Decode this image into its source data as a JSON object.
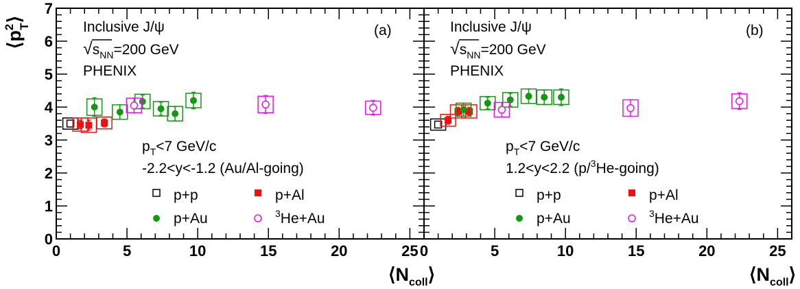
{
  "figure": {
    "ylabel_main": "⟨p",
    "ylabel_sup": "2",
    "ylabel_sub": "T",
    "ylabel_close": "⟩",
    "xlabel_main": "⟨N",
    "xlabel_sub": "coll",
    "xlabel_close": "⟩"
  },
  "panels": [
    {
      "tag": "(a)",
      "title": "Inclusive J/ψ",
      "energy_sqrt": "√",
      "energy_s": "s",
      "energy_sub": "NN",
      "energy_value": "=200 GeV",
      "experiment": "PHENIX",
      "cut_pt_p": "p",
      "cut_pt_sub": "T",
      "cut_pt_rest": "<7 GeV/c",
      "cut_y": "-2.2<y<-1.2 (Au/Al-going)",
      "legend": {
        "pp": "p+p",
        "pal": "p+Al",
        "pau": "p+Au",
        "he_sup": "3",
        "he_rest": "He+Au"
      }
    },
    {
      "tag": "(b)",
      "title": "Inclusive J/ψ",
      "energy_sqrt": "√",
      "energy_s": "s",
      "energy_sub": "NN",
      "energy_value": "=200 GeV",
      "experiment": "PHENIX",
      "cut_pt_p": "p",
      "cut_pt_sub": "T",
      "cut_pt_rest": "<7 GeV/c",
      "cut_y_pre": "1.2<y<2.2 (p/",
      "cut_y_sup": "3",
      "cut_y_post": "He-going)",
      "legend": {
        "pp": "p+p",
        "pal": "p+Al",
        "pau": "p+Au",
        "he_sup": "3",
        "he_rest": "He+Au"
      }
    }
  ],
  "colors": {
    "pp": "#000000",
    "pal": "#ee1111",
    "pau": "#119911",
    "heau": "#ee11ee"
  },
  "chart_data": [
    {
      "type": "scatter",
      "panel": "(a)",
      "xlim": [
        0,
        26
      ],
      "ylim": [
        0,
        7
      ],
      "xticks": [
        "0",
        "5",
        "10",
        "15",
        "20",
        "25"
      ],
      "yticks": [
        "0",
        "1",
        "2",
        "3",
        "4",
        "5",
        "6",
        "7"
      ],
      "series": [
        {
          "name": "p+p",
          "marker": "open-square",
          "color": "#000000",
          "points": [
            {
              "x": 1.0,
              "y": 3.5,
              "stat": 0,
              "sys": 0.17
            }
          ]
        },
        {
          "name": "p+Al",
          "marker": "filled-square",
          "color": "#ee1111",
          "points": [
            {
              "x": 1.7,
              "y": 3.47,
              "stat": 0.13,
              "sys": 0.2
            },
            {
              "x": 2.3,
              "y": 3.45,
              "stat": 0.15,
              "sys": 0.22
            },
            {
              "x": 3.4,
              "y": 3.52,
              "stat": 0.12,
              "sys": 0.18
            }
          ]
        },
        {
          "name": "p+Au",
          "marker": "filled-circle",
          "color": "#119911",
          "points": [
            {
              "x": 2.7,
              "y": 4.0,
              "stat": 0.28,
              "sys": 0.25
            },
            {
              "x": 4.5,
              "y": 3.85,
              "stat": 0.22,
              "sys": 0.22
            },
            {
              "x": 6.1,
              "y": 4.17,
              "stat": 0.2,
              "sys": 0.22
            },
            {
              "x": 7.4,
              "y": 3.95,
              "stat": 0.2,
              "sys": 0.22
            },
            {
              "x": 8.4,
              "y": 3.8,
              "stat": 0.22,
              "sys": 0.22
            },
            {
              "x": 9.7,
              "y": 4.2,
              "stat": 0.25,
              "sys": 0.22
            }
          ]
        },
        {
          "name": "3He+Au",
          "marker": "open-circle",
          "color": "#ee11ee",
          "points": [
            {
              "x": 5.5,
              "y": 4.05,
              "stat": 0.22,
              "sys": 0.22
            },
            {
              "x": 14.8,
              "y": 4.08,
              "stat": 0.27,
              "sys": 0.25
            },
            {
              "x": 22.4,
              "y": 3.98,
              "stat": 0.22,
              "sys": 0.2
            }
          ]
        }
      ]
    },
    {
      "type": "scatter",
      "panel": "(b)",
      "xlim": [
        0,
        26
      ],
      "ylim": [
        0,
        7
      ],
      "xticks": [
        "0",
        "5",
        "10",
        "15",
        "20",
        "25"
      ],
      "yticks": [
        "0",
        "1",
        "2",
        "3",
        "4",
        "5",
        "6",
        "7"
      ],
      "series": [
        {
          "name": "p+p",
          "marker": "open-square",
          "color": "#000000",
          "points": [
            {
              "x": 1.0,
              "y": 3.47,
              "stat": 0,
              "sys": 0.17
            }
          ]
        },
        {
          "name": "p+Al",
          "marker": "filled-square",
          "color": "#ee1111",
          "points": [
            {
              "x": 1.7,
              "y": 3.6,
              "stat": 0.12,
              "sys": 0.18
            },
            {
              "x": 2.4,
              "y": 3.87,
              "stat": 0.12,
              "sys": 0.2
            },
            {
              "x": 3.2,
              "y": 3.87,
              "stat": 0.12,
              "sys": 0.2
            }
          ]
        },
        {
          "name": "p+Au",
          "marker": "filled-circle",
          "color": "#119911",
          "points": [
            {
              "x": 2.8,
              "y": 3.92,
              "stat": 0.2,
              "sys": 0.2
            },
            {
              "x": 4.5,
              "y": 4.12,
              "stat": 0.18,
              "sys": 0.2
            },
            {
              "x": 6.1,
              "y": 4.22,
              "stat": 0.2,
              "sys": 0.22
            },
            {
              "x": 7.4,
              "y": 4.33,
              "stat": 0.22,
              "sys": 0.22
            },
            {
              "x": 8.5,
              "y": 4.3,
              "stat": 0.22,
              "sys": 0.22
            },
            {
              "x": 9.7,
              "y": 4.3,
              "stat": 0.25,
              "sys": 0.22
            }
          ]
        },
        {
          "name": "3He+Au",
          "marker": "open-circle",
          "color": "#ee11ee",
          "points": [
            {
              "x": 5.5,
              "y": 3.92,
              "stat": 0.22,
              "sys": 0.22
            },
            {
              "x": 14.6,
              "y": 3.97,
              "stat": 0.25,
              "sys": 0.25
            },
            {
              "x": 22.3,
              "y": 4.18,
              "stat": 0.25,
              "sys": 0.22
            }
          ]
        }
      ]
    }
  ]
}
